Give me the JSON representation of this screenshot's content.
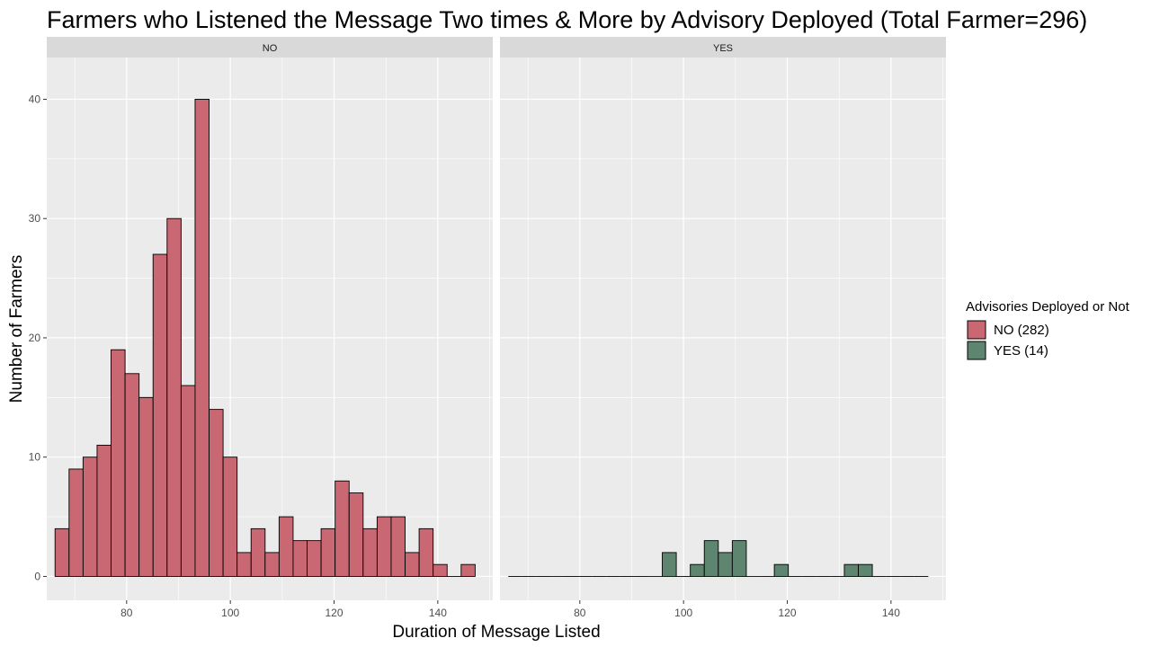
{
  "chart_data": {
    "type": "bar",
    "title": "Farmers who Listened the Message Two times & More by Advisory Deployed (Total Farmer=296)",
    "xlabel": "Duration of Message Listed",
    "ylabel": "Number of Farmers",
    "xlim": [
      64.6,
      150.6
    ],
    "ylim": [
      -2,
      43.5
    ],
    "x_ticks": [
      80,
      100,
      120,
      140
    ],
    "y_ticks": [
      0,
      10,
      20,
      30,
      40
    ],
    "bin_width": 2.7,
    "bin_start": 66.2,
    "bin_count": 30,
    "grid": true,
    "legend": {
      "title": "Advisories Deployed or Not",
      "position": "right",
      "entries": [
        {
          "label": "NO (282)",
          "color": "#c96872"
        },
        {
          "label": "YES (14)",
          "color": "#5e8570"
        }
      ]
    },
    "facets": [
      {
        "label": "NO",
        "color": "#c96872",
        "counts": [
          4,
          9,
          10,
          11,
          19,
          17,
          15,
          27,
          30,
          16,
          40,
          14,
          10,
          2,
          4,
          2,
          5,
          3,
          3,
          4,
          8,
          7,
          4,
          5,
          5,
          2,
          4,
          1,
          0,
          1
        ]
      },
      {
        "label": "YES",
        "color": "#5e8570",
        "counts": [
          0,
          0,
          0,
          0,
          0,
          0,
          0,
          0,
          0,
          0,
          0,
          2,
          0,
          1,
          3,
          2,
          3,
          0,
          0,
          1,
          0,
          0,
          0,
          0,
          1,
          1,
          0,
          0,
          0,
          0
        ]
      }
    ]
  }
}
